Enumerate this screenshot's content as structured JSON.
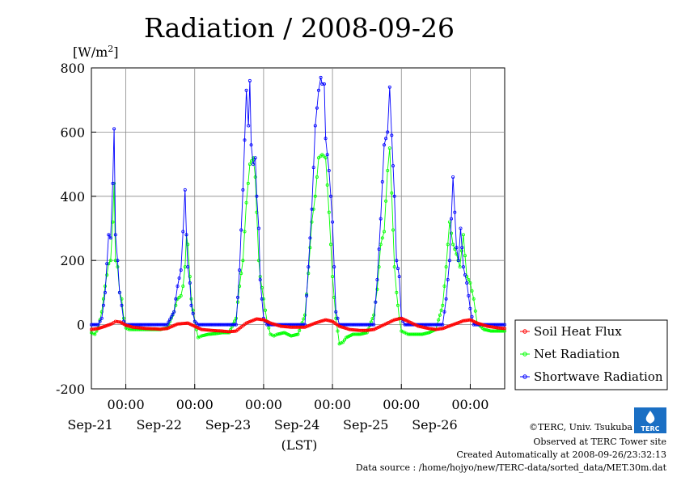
{
  "chart_data": {
    "type": "line",
    "title": "Radiation / 2008-09-26",
    "ylabel": "[W/m²]",
    "ylabel_base": "[W/m",
    "ylabel_sup": "2",
    "ylabel_end": "]",
    "xlabel": "(LST)",
    "ylim": [
      -200,
      800
    ],
    "yticks": [
      -200,
      0,
      200,
      400,
      600,
      800
    ],
    "ytick_labels": [
      "-200",
      "0",
      "200",
      "400",
      "600",
      "800"
    ],
    "x_unit": "days since start of plot (2008-09-20 12:00 LST)",
    "xlim": [
      0,
      6.0
    ],
    "xticks": [
      0.5,
      1.5,
      2.5,
      3.5,
      4.5,
      5.5
    ],
    "time_labels": [
      "00:00",
      "00:00",
      "00:00",
      "00:00",
      "00:00",
      "00:00"
    ],
    "date_labels": [
      "Sep-21",
      "Sep-22",
      "Sep-23",
      "Sep-24",
      "Sep-25",
      "Sep-26"
    ],
    "grid": true,
    "legend_position": "right",
    "series": [
      {
        "name": "Soil Heat Flux",
        "color": "#ff0000",
        "x": [
          0,
          0.1,
          0.2,
          0.3,
          0.35,
          0.42,
          0.5,
          0.6,
          0.7,
          0.8,
          0.9,
          1.0,
          1.1,
          1.25,
          1.4,
          1.5,
          1.6,
          1.75,
          1.9,
          2.0,
          2.1,
          2.25,
          2.4,
          2.5,
          2.6,
          2.75,
          2.9,
          3.0,
          3.1,
          3.25,
          3.4,
          3.5,
          3.6,
          3.75,
          3.9,
          4.0,
          4.1,
          4.25,
          4.4,
          4.5,
          4.6,
          4.75,
          4.9,
          5.0,
          5.1,
          5.25,
          5.4,
          5.5,
          5.6,
          5.75,
          5.9,
          6.0
        ],
        "y": [
          -15,
          -12,
          -5,
          3,
          10,
          8,
          -2,
          -8,
          -10,
          -12,
          -13,
          -14,
          -12,
          2,
          5,
          -5,
          -15,
          -18,
          -20,
          -22,
          -20,
          5,
          18,
          15,
          5,
          -5,
          -8,
          -8,
          -8,
          5,
          15,
          10,
          -5,
          -15,
          -18,
          -18,
          -15,
          0,
          15,
          20,
          10,
          -5,
          -12,
          -15,
          -12,
          0,
          12,
          15,
          5,
          -5,
          -10,
          -12
        ]
      },
      {
        "name": "Net Radiation",
        "color": "#00ff00",
        "x": [
          0,
          0.05,
          0.1,
          0.15,
          0.2,
          0.25,
          0.28,
          0.31,
          0.33,
          0.35,
          0.38,
          0.41,
          0.44,
          0.47,
          0.5,
          0.55,
          0.6,
          0.7,
          0.8,
          0.9,
          1.0,
          1.1,
          1.2,
          1.25,
          1.3,
          1.33,
          1.36,
          1.38,
          1.4,
          1.43,
          1.45,
          1.5,
          1.55,
          1.6,
          1.7,
          1.8,
          1.9,
          2.0,
          2.1,
          2.15,
          2.2,
          2.25,
          2.3,
          2.35,
          2.38,
          2.4,
          2.43,
          2.45,
          2.5,
          2.55,
          2.6,
          2.65,
          2.7,
          2.8,
          2.9,
          3.0,
          3.1,
          3.15,
          3.2,
          3.25,
          3.3,
          3.35,
          3.4,
          3.45,
          3.5,
          3.55,
          3.6,
          3.65,
          3.7,
          3.8,
          3.9,
          4.0,
          4.1,
          4.15,
          4.2,
          4.25,
          4.3,
          4.33,
          4.36,
          4.4,
          4.43,
          4.47,
          4.5,
          4.55,
          4.6,
          4.7,
          4.8,
          4.9,
          5.0,
          5.1,
          5.15,
          5.2,
          5.25,
          5.3,
          5.35,
          5.4,
          5.45,
          5.5,
          5.55,
          5.6,
          5.7,
          5.8,
          5.9,
          6.0
        ],
        "y": [
          -25,
          -30,
          -10,
          40,
          120,
          190,
          200,
          320,
          440,
          200,
          180,
          100,
          80,
          20,
          -10,
          -15,
          -15,
          -15,
          -15,
          -15,
          -15,
          -10,
          40,
          80,
          90,
          120,
          180,
          280,
          250,
          150,
          80,
          10,
          -40,
          -35,
          -30,
          -28,
          -25,
          -25,
          20,
          120,
          200,
          380,
          500,
          520,
          460,
          350,
          200,
          150,
          80,
          10,
          -30,
          -35,
          -30,
          -25,
          -35,
          -30,
          30,
          160,
          320,
          400,
          520,
          530,
          520,
          350,
          150,
          20,
          -60,
          -55,
          -40,
          -30,
          -30,
          -25,
          30,
          110,
          250,
          290,
          480,
          550,
          410,
          180,
          100,
          20,
          -20,
          -25,
          -30,
          -30,
          -30,
          -25,
          -15,
          60,
          180,
          320,
          250,
          220,
          180,
          280,
          150,
          130,
          80,
          5,
          -15,
          -20,
          -20,
          -20
        ]
      },
      {
        "name": "Shortwave Radiation",
        "color": "#0000ff",
        "x": [
          0,
          0.1,
          0.15,
          0.2,
          0.25,
          0.28,
          0.31,
          0.33,
          0.35,
          0.38,
          0.41,
          0.44,
          0.47,
          0.5,
          0.55,
          1.0,
          1.1,
          1.2,
          1.25,
          1.3,
          1.33,
          1.36,
          1.38,
          1.4,
          1.43,
          1.45,
          1.5,
          1.55,
          2.0,
          2.1,
          2.15,
          2.2,
          2.25,
          2.28,
          2.3,
          2.32,
          2.35,
          2.38,
          2.4,
          2.43,
          2.45,
          2.5,
          2.55,
          3.0,
          3.1,
          3.15,
          3.2,
          3.25,
          3.3,
          3.33,
          3.35,
          3.38,
          3.4,
          3.45,
          3.5,
          3.55,
          3.6,
          4.0,
          4.1,
          4.15,
          4.2,
          4.25,
          4.3,
          4.33,
          4.36,
          4.4,
          4.43,
          4.47,
          4.5,
          4.55,
          5.0,
          5.1,
          5.15,
          5.2,
          5.25,
          5.3,
          5.33,
          5.36,
          5.4,
          5.45,
          5.5,
          5.55,
          5.6,
          6.0
        ],
        "y": [
          0,
          0,
          20,
          100,
          280,
          270,
          440,
          610,
          280,
          200,
          100,
          60,
          10,
          0,
          0,
          0,
          0,
          40,
          120,
          170,
          290,
          420,
          280,
          180,
          130,
          60,
          10,
          0,
          0,
          0,
          170,
          420,
          730,
          620,
          760,
          560,
          500,
          520,
          400,
          300,
          140,
          20,
          0,
          0,
          0,
          180,
          360,
          620,
          730,
          770,
          750,
          750,
          580,
          480,
          320,
          40,
          0,
          0,
          0,
          140,
          330,
          560,
          600,
          740,
          590,
          400,
          200,
          150,
          20,
          0,
          0,
          0,
          80,
          200,
          460,
          240,
          200,
          300,
          180,
          130,
          50,
          0,
          0,
          0
        ]
      }
    ]
  },
  "footer": {
    "copyright": "©TERC, Univ. Tsukuba",
    "observed": "Observed at TERC Tower site",
    "created": "Created Automatically at 2008-09-26/23:32:13",
    "source": "Data source : /home/hojyo/new/TERC-data/sorted_data/MET.30m.dat"
  },
  "logo": {
    "text": "TERC"
  }
}
